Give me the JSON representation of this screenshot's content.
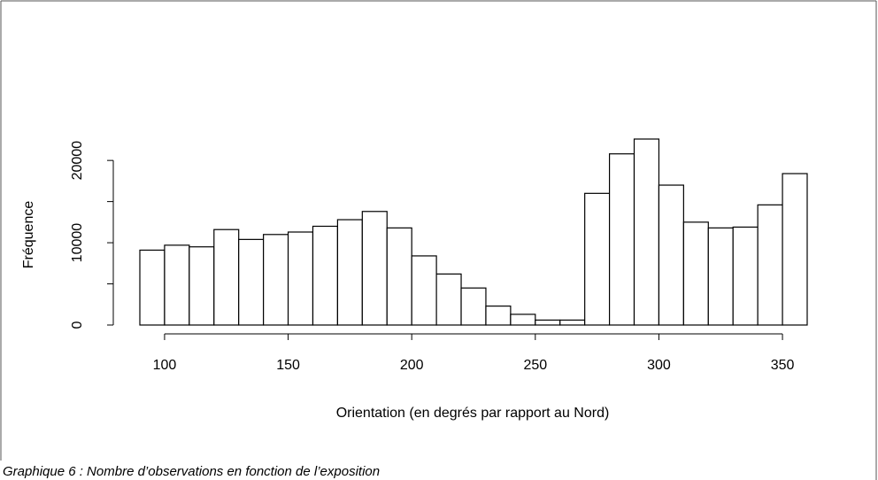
{
  "chart_data": {
    "type": "histogram",
    "xlabel": "Orientation (en degrés par rapport au Nord)",
    "ylabel": "Fréquence",
    "caption": "Graphique 6 : Nombre d’observations en fonction de l’exposition",
    "bins": [
      90,
      100,
      110,
      120,
      130,
      140,
      150,
      160,
      170,
      180,
      190,
      200,
      210,
      220,
      230,
      240,
      250,
      260,
      270,
      280,
      290,
      300,
      310,
      320,
      330,
      340,
      350,
      360
    ],
    "values": [
      9100,
      9700,
      9500,
      11600,
      10400,
      11000,
      11300,
      12000,
      12800,
      13800,
      11800,
      8400,
      6200,
      4500,
      2300,
      1300,
      600,
      600,
      16000,
      20800,
      22600,
      17000,
      12500,
      11800,
      11900,
      14600,
      18400
    ],
    "color": "#ffffff",
    "edge_color": "#000000",
    "xlim": [
      90,
      360
    ],
    "xticks": [
      100,
      150,
      200,
      250,
      300,
      350
    ],
    "ylim": [
      0,
      22600
    ],
    "yticks": [
      0,
      10000,
      20000
    ],
    "yminor_ticks": [
      5000,
      15000
    ]
  }
}
